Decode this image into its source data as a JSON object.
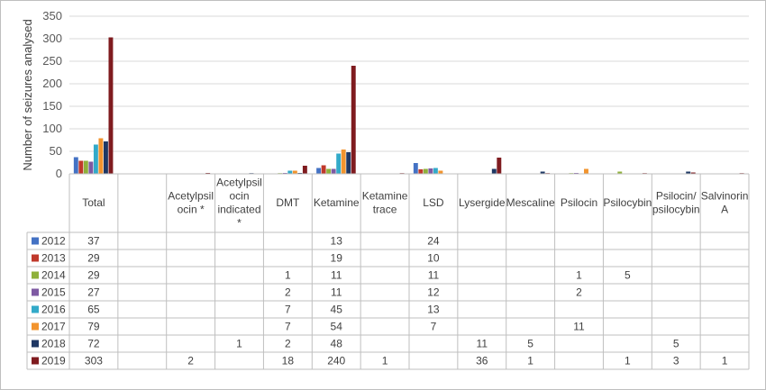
{
  "chart_data": {
    "type": "bar",
    "ylabel": "Number of seizures analysed",
    "ylim": [
      0,
      350
    ],
    "yticks": [
      0,
      50,
      100,
      150,
      200,
      250,
      300,
      350
    ],
    "grid": true,
    "legend": "table-rows",
    "categories": [
      "Total",
      "",
      "Acetylpsilocin *",
      "Acetylpsilocin indicated *",
      "DMT",
      "Ketamine",
      "Ketamine trace",
      "LSD",
      "Lysergide",
      "Mescaline",
      "Psilocin",
      "Psilocybin",
      "Psilocin/ psilocybin",
      "Salvinorin A"
    ],
    "category_label_lines": [
      [
        "Total"
      ],
      [
        ""
      ],
      [
        "Acetylpsil",
        "ocin *"
      ],
      [
        "Acetylpsil",
        "ocin",
        "indicated",
        "*"
      ],
      [
        "DMT"
      ],
      [
        "Ketamine"
      ],
      [
        "Ketamine",
        "trace"
      ],
      [
        "LSD"
      ],
      [
        "Lysergide"
      ],
      [
        "Mescaline"
      ],
      [
        "Psilocin"
      ],
      [
        "Psilocybin"
      ],
      [
        "Psilocin/",
        "psilocybin"
      ],
      [
        "Salvinorin",
        "A"
      ]
    ],
    "series": [
      {
        "name": "2012",
        "color": "#4472c4",
        "values": [
          37,
          null,
          null,
          null,
          null,
          13,
          null,
          24,
          null,
          null,
          null,
          null,
          null,
          null
        ]
      },
      {
        "name": "2013",
        "color": "#c0392b",
        "values": [
          29,
          null,
          null,
          null,
          null,
          19,
          null,
          10,
          null,
          null,
          null,
          null,
          null,
          null
        ]
      },
      {
        "name": "2014",
        "color": "#8fb13b",
        "values": [
          29,
          null,
          null,
          null,
          1,
          11,
          null,
          11,
          null,
          null,
          1,
          5,
          null,
          null
        ]
      },
      {
        "name": "2015",
        "color": "#7e5aa3",
        "values": [
          27,
          null,
          null,
          null,
          2,
          11,
          null,
          12,
          null,
          null,
          2,
          null,
          null,
          null
        ]
      },
      {
        "name": "2016",
        "color": "#33aac9",
        "values": [
          65,
          null,
          null,
          null,
          7,
          45,
          null,
          13,
          null,
          null,
          null,
          null,
          null,
          null
        ]
      },
      {
        "name": "2017",
        "color": "#f2942e",
        "values": [
          79,
          null,
          null,
          null,
          7,
          54,
          null,
          7,
          null,
          null,
          11,
          null,
          null,
          null
        ]
      },
      {
        "name": "2018",
        "color": "#1f3864",
        "values": [
          72,
          null,
          null,
          1,
          2,
          48,
          null,
          null,
          11,
          5,
          null,
          null,
          5,
          null
        ]
      },
      {
        "name": "2019",
        "color": "#7f1b1f",
        "values": [
          303,
          null,
          2,
          null,
          18,
          240,
          1,
          null,
          36,
          1,
          null,
          1,
          3,
          1
        ]
      }
    ]
  }
}
